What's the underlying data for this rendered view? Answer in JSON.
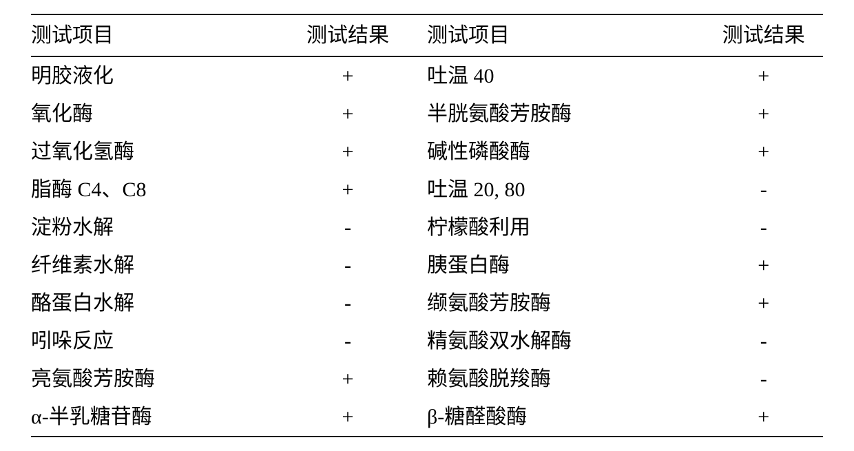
{
  "headers": {
    "item_left": "测试项目",
    "result_left": "测试结果",
    "item_right": "测试项目",
    "result_right": "测试结果"
  },
  "rows": [
    {
      "l_item": "明胶液化",
      "l_res": "+",
      "r_item": "吐温 40",
      "r_res": "+"
    },
    {
      "l_item": "氧化酶",
      "l_res": "+",
      "r_item": "半胱氨酸芳胺酶",
      "r_res": "+"
    },
    {
      "l_item": "过氧化氢酶",
      "l_res": "+",
      "r_item": "碱性磷酸酶",
      "r_res": "+"
    },
    {
      "l_item": "脂酶 C4、C8",
      "l_res": "+",
      "r_item": "吐温 20, 80",
      "r_res": "-"
    },
    {
      "l_item": "淀粉水解",
      "l_res": "-",
      "r_item": "柠檬酸利用",
      "r_res": "-"
    },
    {
      "l_item": "纤维素水解",
      "l_res": "-",
      "r_item": "胰蛋白酶",
      "r_res": "+"
    },
    {
      "l_item": "酪蛋白水解",
      "l_res": "-",
      "r_item": "缬氨酸芳胺酶",
      "r_res": "+"
    },
    {
      "l_item": "吲哚反应",
      "l_res": "-",
      "r_item": "精氨酸双水解酶",
      "r_res": "-"
    },
    {
      "l_item": "亮氨酸芳胺酶",
      "l_res": "+",
      "r_item": "赖氨酸脱羧酶",
      "r_res": "-"
    },
    {
      "l_item": "α-半乳糖苷酶",
      "l_res": "+",
      "r_item": "β-糖醛酸酶",
      "r_res": "+"
    }
  ]
}
